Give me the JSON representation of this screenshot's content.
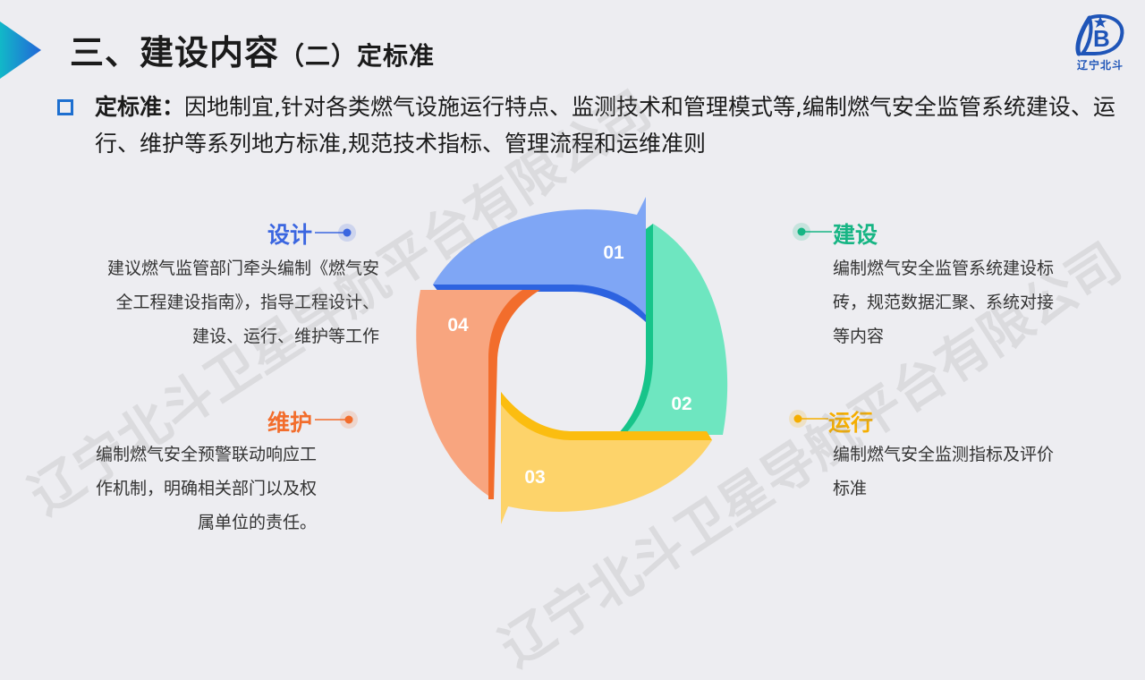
{
  "title": {
    "main": "三、建设内容",
    "sub": "（二）定标准"
  },
  "logo": {
    "text": "辽宁北斗"
  },
  "intro": {
    "label": "定标准：",
    "text": "因地制宜,针对各类燃气设施运行特点、监测技术和管理模式等,编制燃气安全监管系统建设、运行、维护等系列地方标准,规范技术指标、管理流程和运维准则"
  },
  "watermark": {
    "text": "辽宁北斗卫星导航平台有限公司"
  },
  "cycle": {
    "segments": [
      {
        "number": "01",
        "color": "#7fa6f5",
        "shade": "#2d63e0"
      },
      {
        "number": "02",
        "color": "#6ee6c0",
        "shade": "#17c48a"
      },
      {
        "number": "03",
        "color": "#fdd36a",
        "shade": "#fbbd10"
      },
      {
        "number": "04",
        "color": "#f8a57f",
        "shade": "#f26d2c"
      }
    ]
  },
  "items": {
    "design": {
      "title": "设计",
      "color": "#3b66e0",
      "desc_lines": [
        "建议燃气监管部门牵头编制《燃气安",
        "全工程建设指南》，指导工程设计、",
        "建设、运行、维护等工作"
      ]
    },
    "build": {
      "title": "建设",
      "color": "#17b584",
      "desc_lines": [
        "编制燃气安全监管系统建设标",
        "砖，规范数据汇聚、系统对接",
        "等内容"
      ]
    },
    "maintain": {
      "title": "维护",
      "color": "#f26d2c",
      "desc_lines": [
        "编制燃气安全预警联动响应工",
        "作机制，明确相关部门以及权",
        "属单位的责任。"
      ]
    },
    "operate": {
      "title": "运行",
      "color": "#f5ae00",
      "desc_lines": [
        "编制燃气安全监测指标及评价",
        "标准"
      ]
    }
  }
}
